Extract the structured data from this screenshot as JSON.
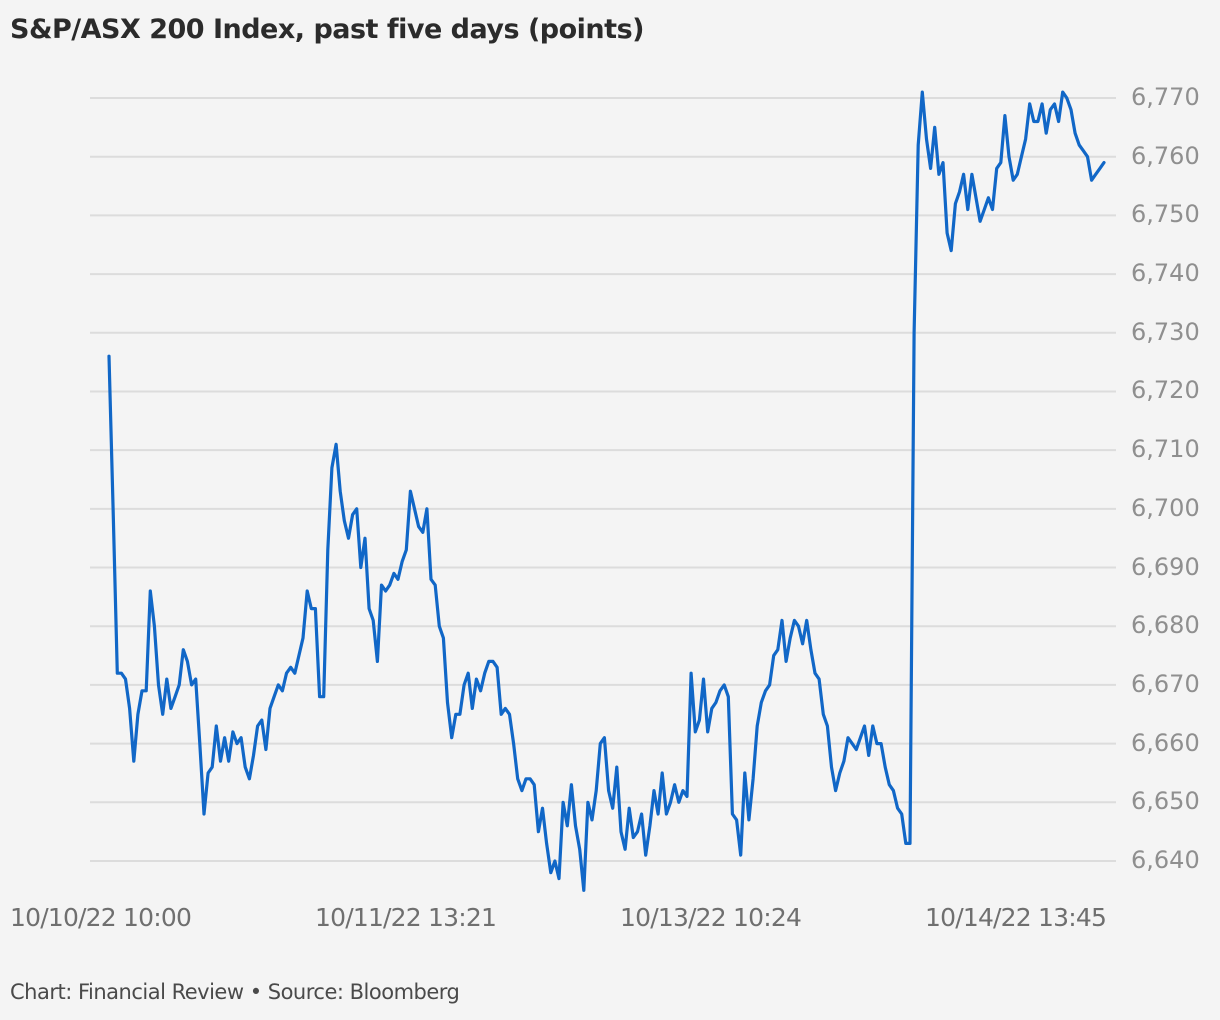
{
  "title": "S&P/ASX 200 Index, past five days (points)",
  "footer": "Chart: Financial Review • Source: Bloomberg",
  "colors": {
    "line": "#1167c7",
    "grid": "#dcdcdc",
    "background": "#f4f4f4",
    "ytick": "#8f8f8f",
    "xtick": "#6f6f6f"
  },
  "chart_data": {
    "type": "line",
    "title": "S&P/ASX 200 Index, past five days (points)",
    "xlabel": "",
    "ylabel": "points",
    "ylim": [
      6635,
      6772
    ],
    "grid": true,
    "y_ticks": [
      "6,770",
      "6,760",
      "6,750",
      "6,740",
      "6,730",
      "6,720",
      "6,710",
      "6,700",
      "6,690",
      "6,680",
      "6,670",
      "6,660",
      "6,650",
      "6,640"
    ],
    "x_ticks": [
      "10/10/22 10:00",
      "10/11/22 13:21",
      "10/13/22 10:24",
      "10/14/22 13:45"
    ],
    "series": [
      {
        "name": "S&P/ASX 200",
        "points": [
          [
            0,
            6726
          ],
          [
            1,
            6700
          ],
          [
            2,
            6672
          ],
          [
            3,
            6672
          ],
          [
            4,
            6671
          ],
          [
            5,
            6666
          ],
          [
            6,
            6657
          ],
          [
            7,
            6665
          ],
          [
            8,
            6669
          ],
          [
            9,
            6669
          ],
          [
            10,
            6686
          ],
          [
            11,
            6680
          ],
          [
            12,
            6670
          ],
          [
            13,
            6665
          ],
          [
            14,
            6671
          ],
          [
            15,
            6666
          ],
          [
            16,
            6668
          ],
          [
            17,
            6670
          ],
          [
            18,
            6676
          ],
          [
            19,
            6674
          ],
          [
            20,
            6670
          ],
          [
            21,
            6671
          ],
          [
            22,
            6660
          ],
          [
            23,
            6648
          ],
          [
            24,
            6655
          ],
          [
            25,
            6656
          ],
          [
            26,
            6663
          ],
          [
            27,
            6657
          ],
          [
            28,
            6661
          ],
          [
            29,
            6657
          ],
          [
            30,
            6662
          ],
          [
            31,
            6660
          ],
          [
            32,
            6661
          ],
          [
            33,
            6656
          ],
          [
            34,
            6654
          ],
          [
            35,
            6658
          ],
          [
            36,
            6663
          ],
          [
            37,
            6664
          ],
          [
            38,
            6659
          ],
          [
            39,
            6666
          ],
          [
            40,
            6668
          ],
          [
            41,
            6670
          ],
          [
            42,
            6669
          ],
          [
            43,
            6672
          ],
          [
            44,
            6673
          ],
          [
            45,
            6672
          ],
          [
            46,
            6675
          ],
          [
            47,
            6678
          ],
          [
            48,
            6686
          ],
          [
            49,
            6683
          ],
          [
            50,
            6683
          ],
          [
            51,
            6668
          ],
          [
            52,
            6668
          ],
          [
            53,
            6693
          ],
          [
            54,
            6707
          ],
          [
            55,
            6711
          ],
          [
            56,
            6703
          ],
          [
            57,
            6698
          ],
          [
            58,
            6695
          ],
          [
            59,
            6699
          ],
          [
            60,
            6700
          ],
          [
            61,
            6690
          ],
          [
            62,
            6695
          ],
          [
            63,
            6683
          ],
          [
            64,
            6681
          ],
          [
            65,
            6674
          ],
          [
            66,
            6687
          ],
          [
            67,
            6686
          ],
          [
            68,
            6687
          ],
          [
            69,
            6689
          ],
          [
            70,
            6688
          ],
          [
            71,
            6691
          ],
          [
            72,
            6693
          ],
          [
            73,
            6703
          ],
          [
            74,
            6700
          ],
          [
            75,
            6697
          ],
          [
            76,
            6696
          ],
          [
            77,
            6700
          ],
          [
            78,
            6688
          ],
          [
            79,
            6687
          ],
          [
            80,
            6680
          ],
          [
            81,
            6678
          ],
          [
            82,
            6667
          ],
          [
            83,
            6661
          ],
          [
            84,
            6665
          ],
          [
            85,
            6665
          ],
          [
            86,
            6670
          ],
          [
            87,
            6672
          ],
          [
            88,
            6666
          ],
          [
            89,
            6671
          ],
          [
            90,
            6669
          ],
          [
            91,
            6672
          ],
          [
            92,
            6674
          ],
          [
            93,
            6674
          ],
          [
            94,
            6673
          ],
          [
            95,
            6665
          ],
          [
            96,
            6666
          ],
          [
            97,
            6665
          ],
          [
            98,
            6660
          ],
          [
            99,
            6654
          ],
          [
            100,
            6652
          ],
          [
            101,
            6654
          ],
          [
            102,
            6654
          ],
          [
            103,
            6653
          ],
          [
            104,
            6645
          ],
          [
            105,
            6649
          ],
          [
            106,
            6643
          ],
          [
            107,
            6638
          ],
          [
            108,
            6640
          ],
          [
            109,
            6637
          ],
          [
            110,
            6650
          ],
          [
            111,
            6646
          ],
          [
            112,
            6653
          ],
          [
            113,
            6646
          ],
          [
            114,
            6642
          ],
          [
            115,
            6635
          ],
          [
            116,
            6650
          ],
          [
            117,
            6647
          ],
          [
            118,
            6652
          ],
          [
            119,
            6660
          ],
          [
            120,
            6661
          ],
          [
            121,
            6652
          ],
          [
            122,
            6649
          ],
          [
            123,
            6656
          ],
          [
            124,
            6645
          ],
          [
            125,
            6642
          ],
          [
            126,
            6649
          ],
          [
            127,
            6644
          ],
          [
            128,
            6645
          ],
          [
            129,
            6648
          ],
          [
            130,
            6641
          ],
          [
            131,
            6646
          ],
          [
            132,
            6652
          ],
          [
            133,
            6648
          ],
          [
            134,
            6655
          ],
          [
            135,
            6648
          ],
          [
            136,
            6650
          ],
          [
            137,
            6653
          ],
          [
            138,
            6650
          ],
          [
            139,
            6652
          ],
          [
            140,
            6651
          ],
          [
            141,
            6672
          ],
          [
            142,
            6662
          ],
          [
            143,
            6664
          ],
          [
            144,
            6671
          ],
          [
            145,
            6662
          ],
          [
            146,
            6666
          ],
          [
            147,
            6667
          ],
          [
            148,
            6669
          ],
          [
            149,
            6670
          ],
          [
            150,
            6668
          ],
          [
            151,
            6648
          ],
          [
            152,
            6647
          ],
          [
            153,
            6641
          ],
          [
            154,
            6655
          ],
          [
            155,
            6647
          ],
          [
            156,
            6654
          ],
          [
            157,
            6663
          ],
          [
            158,
            6667
          ],
          [
            159,
            6669
          ],
          [
            160,
            6670
          ],
          [
            161,
            6675
          ],
          [
            162,
            6676
          ],
          [
            163,
            6681
          ],
          [
            164,
            6674
          ],
          [
            165,
            6678
          ],
          [
            166,
            6681
          ],
          [
            167,
            6680
          ],
          [
            168,
            6677
          ],
          [
            169,
            6681
          ],
          [
            170,
            6676
          ],
          [
            171,
            6672
          ],
          [
            172,
            6671
          ],
          [
            173,
            6665
          ],
          [
            174,
            6663
          ],
          [
            175,
            6656
          ],
          [
            176,
            6652
          ],
          [
            177,
            6655
          ],
          [
            178,
            6657
          ],
          [
            179,
            6661
          ],
          [
            180,
            6660
          ],
          [
            181,
            6659
          ],
          [
            182,
            6661
          ],
          [
            183,
            6663
          ],
          [
            184,
            6658
          ],
          [
            185,
            6663
          ],
          [
            186,
            6660
          ],
          [
            187,
            6660
          ],
          [
            188,
            6656
          ],
          [
            189,
            6653
          ],
          [
            190,
            6652
          ],
          [
            191,
            6649
          ],
          [
            192,
            6648
          ],
          [
            193,
            6643
          ],
          [
            194,
            6643
          ],
          [
            195,
            6730
          ],
          [
            196,
            6762
          ],
          [
            197,
            6771
          ],
          [
            198,
            6763
          ],
          [
            199,
            6758
          ],
          [
            200,
            6765
          ],
          [
            201,
            6757
          ],
          [
            202,
            6759
          ],
          [
            203,
            6747
          ],
          [
            204,
            6744
          ],
          [
            205,
            6752
          ],
          [
            206,
            6754
          ],
          [
            207,
            6757
          ],
          [
            208,
            6751
          ],
          [
            209,
            6757
          ],
          [
            210,
            6753
          ],
          [
            211,
            6749
          ],
          [
            212,
            6751
          ],
          [
            213,
            6753
          ],
          [
            214,
            6751
          ],
          [
            215,
            6758
          ],
          [
            216,
            6759
          ],
          [
            217,
            6767
          ],
          [
            218,
            6760
          ],
          [
            219,
            6756
          ],
          [
            220,
            6757
          ],
          [
            221,
            6760
          ],
          [
            222,
            6763
          ],
          [
            223,
            6769
          ],
          [
            224,
            6766
          ],
          [
            225,
            6766
          ],
          [
            226,
            6769
          ],
          [
            227,
            6764
          ],
          [
            228,
            6768
          ],
          [
            229,
            6769
          ],
          [
            230,
            6766
          ],
          [
            231,
            6771
          ],
          [
            232,
            6770
          ],
          [
            233,
            6768
          ],
          [
            234,
            6764
          ],
          [
            235,
            6762
          ],
          [
            236,
            6761
          ],
          [
            237,
            6760
          ],
          [
            238,
            6756
          ],
          [
            239,
            6757
          ],
          [
            240,
            6758
          ],
          [
            241,
            6759
          ]
        ]
      }
    ]
  }
}
